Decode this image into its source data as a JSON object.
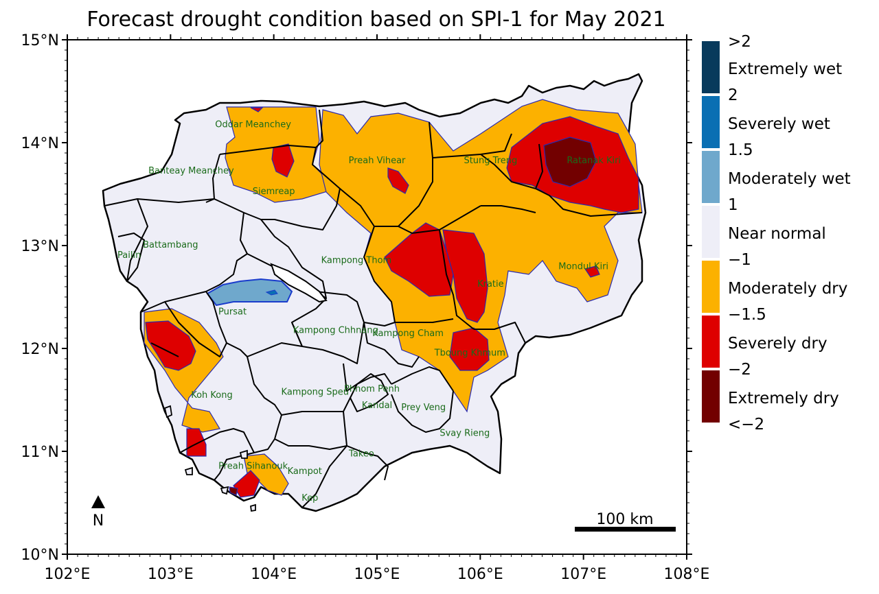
{
  "title": "Forecast drought condition based on SPI-1 for May 2021",
  "axes": {
    "x_ticks": [
      "102°E",
      "103°E",
      "104°E",
      "105°E",
      "106°E",
      "107°E",
      "108°E"
    ],
    "y_ticks": [
      "15°N",
      "14°N",
      "13°N",
      "12°N",
      "11°N",
      "10°N"
    ],
    "x_range": [
      102,
      108
    ],
    "y_range": [
      10,
      15
    ]
  },
  "provinces": [
    {
      "name": "Oddar Meanchey",
      "lon": 103.8,
      "lat": 14.15
    },
    {
      "name": "Banteay Meanchey",
      "lon": 103.2,
      "lat": 13.7
    },
    {
      "name": "Preah Vihear",
      "lon": 105.0,
      "lat": 13.8
    },
    {
      "name": "Stung Treng",
      "lon": 106.1,
      "lat": 13.8
    },
    {
      "name": "Ratanak Kiri",
      "lon": 107.1,
      "lat": 13.8
    },
    {
      "name": "Siemreap",
      "lon": 104.0,
      "lat": 13.5
    },
    {
      "name": "Battambang",
      "lon": 103.0,
      "lat": 12.98
    },
    {
      "name": "Pailin",
      "lon": 102.6,
      "lat": 12.88
    },
    {
      "name": "Kampong Thom",
      "lon": 104.8,
      "lat": 12.83
    },
    {
      "name": "Kratie",
      "lon": 106.1,
      "lat": 12.6
    },
    {
      "name": "Mondul Kiri",
      "lon": 107.0,
      "lat": 12.77
    },
    {
      "name": "Pursat",
      "lon": 103.6,
      "lat": 12.33
    },
    {
      "name": "Kampong Chhnang",
      "lon": 104.6,
      "lat": 12.15
    },
    {
      "name": "Kampong Cham",
      "lon": 105.3,
      "lat": 12.12
    },
    {
      "name": "Tboung Khmum",
      "lon": 105.9,
      "lat": 11.93
    },
    {
      "name": "Koh Kong",
      "lon": 103.4,
      "lat": 11.52
    },
    {
      "name": "Kampong Speu",
      "lon": 104.4,
      "lat": 11.55
    },
    {
      "name": "Phnom Penh",
      "lon": 104.95,
      "lat": 11.58
    },
    {
      "name": "Kandal",
      "lon": 105.0,
      "lat": 11.42
    },
    {
      "name": "Prey Veng",
      "lon": 105.45,
      "lat": 11.4
    },
    {
      "name": "Svay Rieng",
      "lon": 105.85,
      "lat": 11.15
    },
    {
      "name": "Takeo",
      "lon": 104.85,
      "lat": 10.95
    },
    {
      "name": "Preah Sihanouk",
      "lon": 103.8,
      "lat": 10.83
    },
    {
      "name": "Kampot",
      "lon": 104.3,
      "lat": 10.78
    },
    {
      "name": "Kep",
      "lon": 104.35,
      "lat": 10.52
    }
  ],
  "legend": {
    "boundaries": [
      ">2",
      "2",
      "1.5",
      "1",
      "−1",
      "−1.5",
      "−2",
      "<−2"
    ],
    "classes": [
      {
        "label": "Extremely wet",
        "color": "#083a5c"
      },
      {
        "label": "Severely wet",
        "color": "#0a6fb3"
      },
      {
        "label": "Moderately wet",
        "color": "#6fa8cc"
      },
      {
        "label": "Near normal",
        "color": "#eeeef7"
      },
      {
        "label": "Moderately dry",
        "color": "#fcb100"
      },
      {
        "label": "Severely dry",
        "color": "#de0000"
      },
      {
        "label": "Extremely dry",
        "color": "#720000"
      }
    ]
  },
  "scale_bar": {
    "label": "100 km"
  },
  "north_arrow": {
    "label": "N"
  }
}
